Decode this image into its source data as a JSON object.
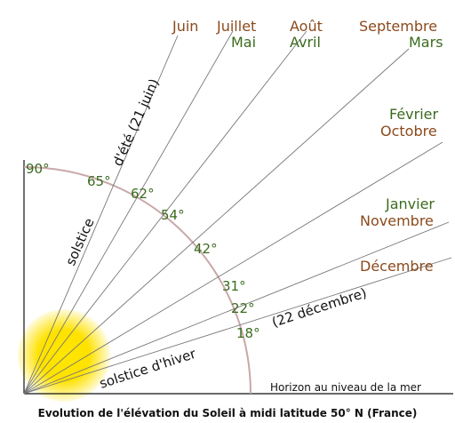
{
  "months": {
    "juin": "Juin",
    "juillet": "Juillet",
    "aout": "Août",
    "septembre": "Septembre",
    "mai": "Mai",
    "avril": "Avril",
    "mars": "Mars",
    "fevrier": "Février",
    "octobre": "Octobre",
    "janvier": "Janvier",
    "novembre": "Novembre",
    "decembre": "Décembre"
  },
  "angles": {
    "a90": "90°",
    "a65": "65°",
    "a62": "62°",
    "a54": "54°",
    "a42": "42°",
    "a31": "31°",
    "a22": "22°",
    "a18": "18°"
  },
  "labels": {
    "solstice_ete_1": "solstice",
    "solstice_ete_2": "d'été (21 juin)",
    "solstice_hiver_1": "solstice d'hiver",
    "solstice_hiver_2": "(22 décembre)",
    "horizon": "Horizon au niveau de la mer",
    "caption": "Evolution de l'élévation du Soleil à midi latitude 50° N (France)"
  },
  "colors": {
    "brown": "#8b4a1c",
    "green": "#3a6b1e",
    "sun": "#ffd800",
    "arc": "#c8a8a8"
  }
}
